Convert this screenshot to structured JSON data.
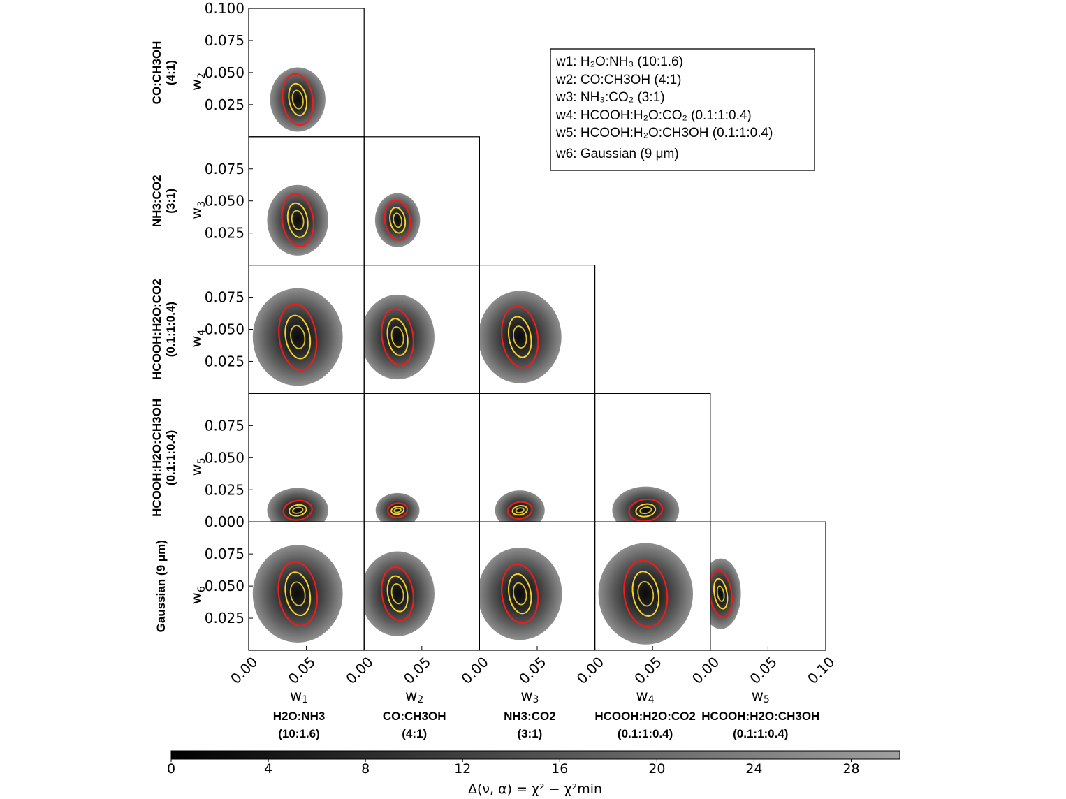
{
  "chart_data": {
    "type": "contour",
    "title": "",
    "variables": [
      "w1",
      "w2",
      "w3",
      "w4",
      "w5",
      "w6"
    ],
    "components": [
      {
        "var": "w1",
        "label": "H2O:NH3",
        "ratio": "(10:1.6)"
      },
      {
        "var": "w2",
        "label": "CO:CH3OH",
        "ratio": "(4:1)"
      },
      {
        "var": "w3",
        "label": "NH3:CO2",
        "ratio": "(3:1)"
      },
      {
        "var": "w4",
        "label": "HCOOH:H2O:CO2",
        "ratio": "(0.1:1:0.4)"
      },
      {
        "var": "w5",
        "label": "HCOOH:H2O:CH3OH",
        "ratio": "(0.1:1:0.4)"
      },
      {
        "var": "w6",
        "label": "Gaussian (9 μm)",
        "ratio": ""
      }
    ],
    "x_axis_labels": [
      "w1",
      "w2",
      "w3",
      "w4",
      "w5"
    ],
    "y_axis_labels": [
      "w2",
      "w3",
      "w4",
      "w5",
      "w6"
    ],
    "xlim": [
      0.0,
      0.1
    ],
    "ylim": [
      0.0,
      0.1
    ],
    "x_tick_labels": [
      "0.00",
      "0.05",
      "0.10"
    ],
    "y_tick_labels": [
      [
        "0.025",
        "0.050",
        "0.075",
        "0.100"
      ],
      [
        "0.025",
        "0.050",
        "0.075"
      ],
      [
        "0.025",
        "0.050",
        "0.075"
      ],
      [
        "0.000",
        "0.025",
        "0.050",
        "0.075"
      ],
      [
        "0.025",
        "0.050",
        "0.075"
      ]
    ],
    "panels": [
      {
        "row": 0,
        "col": 0,
        "x": "w1",
        "y": "w2",
        "cx": 0.0425,
        "cy": 0.029,
        "outer": [
          0.024,
          0.025
        ],
        "red": [
          0.013,
          0.02
        ],
        "yellow": [
          [
            0.0075,
            0.0125
          ],
          [
            0.0045,
            0.0072
          ]
        ]
      },
      {
        "row": 1,
        "col": 0,
        "x": "w1",
        "y": "w3",
        "cx": 0.0425,
        "cy": 0.035,
        "outer": [
          0.0265,
          0.0275
        ],
        "red": [
          0.0135,
          0.0205
        ],
        "yellow": [
          [
            0.0085,
            0.0135
          ],
          [
            0.005,
            0.0075
          ]
        ]
      },
      {
        "row": 1,
        "col": 1,
        "x": "w2",
        "y": "w3",
        "cx": 0.029,
        "cy": 0.035,
        "outer": [
          0.0195,
          0.021
        ],
        "red": [
          0.011,
          0.0155
        ],
        "yellow": [
          [
            0.0065,
            0.01
          ],
          [
            0.0035,
            0.0055
          ]
        ]
      },
      {
        "row": 2,
        "col": 0,
        "x": "w1",
        "y": "w4",
        "cx": 0.0425,
        "cy": 0.044,
        "outer": [
          0.039,
          0.038
        ],
        "red": [
          0.016,
          0.026
        ],
        "yellow": [
          [
            0.0105,
            0.017
          ],
          [
            0.006,
            0.009
          ]
        ]
      },
      {
        "row": 2,
        "col": 1,
        "x": "w2",
        "y": "w4",
        "cx": 0.029,
        "cy": 0.044,
        "outer": [
          0.032,
          0.033
        ],
        "red": [
          0.0135,
          0.022
        ],
        "yellow": [
          [
            0.0085,
            0.0145
          ],
          [
            0.005,
            0.008
          ]
        ]
      },
      {
        "row": 2,
        "col": 2,
        "x": "w3",
        "y": "w4",
        "cx": 0.035,
        "cy": 0.044,
        "outer": [
          0.036,
          0.036
        ],
        "red": [
          0.0155,
          0.024
        ],
        "yellow": [
          [
            0.0095,
            0.016
          ],
          [
            0.0055,
            0.0085
          ]
        ]
      },
      {
        "row": 3,
        "col": 0,
        "x": "w1",
        "y": "w5",
        "cx": 0.0425,
        "cy": 0.009,
        "outer": [
          0.0265,
          0.0175
        ],
        "red": [
          0.0125,
          0.0075
        ],
        "yellow": [
          [
            0.0075,
            0.0042
          ],
          [
            0.0045,
            0.0022
          ]
        ]
      },
      {
        "row": 3,
        "col": 1,
        "x": "w2",
        "y": "w5",
        "cx": 0.029,
        "cy": 0.009,
        "outer": [
          0.019,
          0.0135
        ],
        "red": [
          0.0085,
          0.0055
        ],
        "yellow": [
          [
            0.0055,
            0.003
          ],
          [
            0.003,
            0.0015
          ]
        ]
      },
      {
        "row": 3,
        "col": 2,
        "x": "w3",
        "y": "w5",
        "cx": 0.035,
        "cy": 0.009,
        "outer": [
          0.0215,
          0.0155
        ],
        "red": [
          0.0105,
          0.0065
        ],
        "yellow": [
          [
            0.0065,
            0.0035
          ],
          [
            0.0035,
            0.0018
          ]
        ]
      },
      {
        "row": 3,
        "col": 3,
        "x": "w4",
        "y": "w5",
        "cx": 0.044,
        "cy": 0.009,
        "outer": [
          0.029,
          0.0185
        ],
        "red": [
          0.0145,
          0.0085
        ],
        "yellow": [
          [
            0.0085,
            0.0048
          ],
          [
            0.005,
            0.0024
          ]
        ]
      },
      {
        "row": 4,
        "col": 0,
        "x": "w1",
        "y": "w6",
        "cx": 0.0425,
        "cy": 0.044,
        "outer": [
          0.039,
          0.038
        ],
        "red": [
          0.0165,
          0.025
        ],
        "yellow": [
          [
            0.0105,
            0.017
          ],
          [
            0.0062,
            0.0092
          ]
        ]
      },
      {
        "row": 4,
        "col": 1,
        "x": "w2",
        "y": "w6",
        "cx": 0.029,
        "cy": 0.044,
        "outer": [
          0.032,
          0.033
        ],
        "red": [
          0.0135,
          0.021
        ],
        "yellow": [
          [
            0.0085,
            0.014
          ],
          [
            0.005,
            0.0078
          ]
        ]
      },
      {
        "row": 4,
        "col": 2,
        "x": "w3",
        "y": "w6",
        "cx": 0.035,
        "cy": 0.044,
        "outer": [
          0.0365,
          0.036
        ],
        "red": [
          0.0155,
          0.023
        ],
        "yellow": [
          [
            0.0095,
            0.0155
          ],
          [
            0.0055,
            0.0085
          ]
        ]
      },
      {
        "row": 4,
        "col": 3,
        "x": "w4",
        "y": "w6",
        "cx": 0.044,
        "cy": 0.044,
        "outer": [
          0.041,
          0.0395
        ],
        "red": [
          0.0185,
          0.026
        ],
        "yellow": [
          [
            0.011,
            0.0175
          ],
          [
            0.0065,
            0.0095
          ]
        ]
      },
      {
        "row": 4,
        "col": 4,
        "x": "w5",
        "y": "w6",
        "cx": 0.009,
        "cy": 0.044,
        "outer": [
          0.0175,
          0.0275
        ],
        "red": [
          0.0095,
          0.0185
        ],
        "yellow": [
          [
            0.0055,
            0.0118
          ],
          [
            0.0028,
            0.006
          ]
        ]
      }
    ],
    "legend": [
      "w1: H₂O:NH₃ (10:1.6)",
      "w2: CO:CH3OH (4:1)",
      "w3: NH₃:CO₂ (3:1)",
      "w4: HCOOH:H₂O:CO₂ (0.1:1:0.4)",
      "w5: HCOOH:H₂O:CH3OH (0.1:1:0.4)",
      "w6: Gaussian (9 μm)"
    ],
    "legend_position": "top-right",
    "colorbar": {
      "min": 0,
      "max": 30,
      "tick_labels": [
        "0",
        "4",
        "8",
        "12",
        "16",
        "20",
        "24",
        "28"
      ],
      "tick_values": [
        0,
        4,
        8,
        12,
        16,
        20,
        24,
        28
      ],
      "label": "Δ(ν, α) = χ² − χ²min",
      "colormap": "gray"
    },
    "contour_colors": {
      "red": "#ee1c1c",
      "yellow": "#f6d22a",
      "yellow_inner": "#d9c030"
    }
  }
}
